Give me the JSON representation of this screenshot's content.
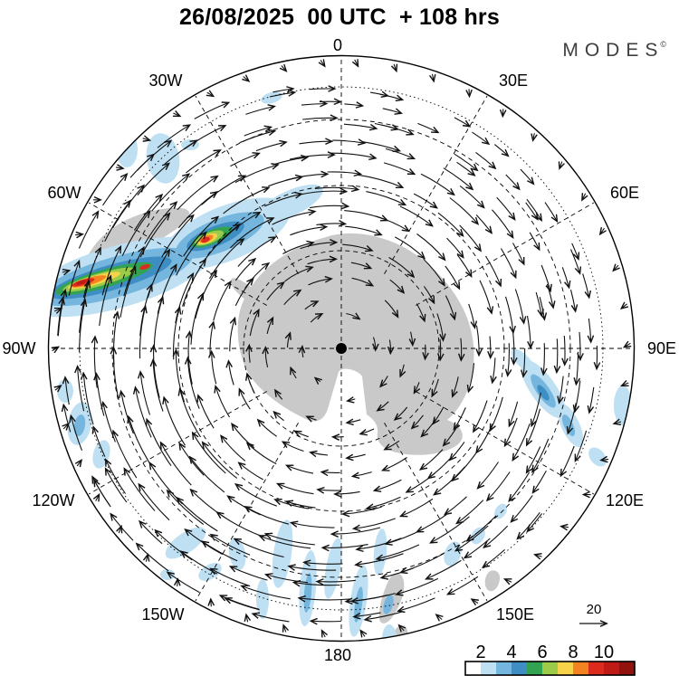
{
  "title": "26/08/2025  00 UTC  + 108 hrs",
  "logo": {
    "text": "MODES",
    "mark": "©"
  },
  "map": {
    "projection": "south-polar view, pole-centered",
    "center_dot_color": "#000000",
    "land_color": "#c9c9c9",
    "lon_labels": [
      "0",
      "30E",
      "60E",
      "90E",
      "120E",
      "150E",
      "180",
      "150W",
      "120W",
      "90W",
      "60W",
      "30W"
    ]
  },
  "colorbar": {
    "labels": [
      "2",
      "4",
      "6",
      "8",
      "10"
    ],
    "colors": [
      "#ffffff",
      "#bfe0f2",
      "#74b6de",
      "#3e8ec4",
      "#33a352",
      "#9ccb4a",
      "#f7d349",
      "#f58220",
      "#da2b1e",
      "#bf1a15",
      "#92120e"
    ]
  },
  "ref_arrow": {
    "label": "20"
  },
  "arrow_color": "#111111"
}
